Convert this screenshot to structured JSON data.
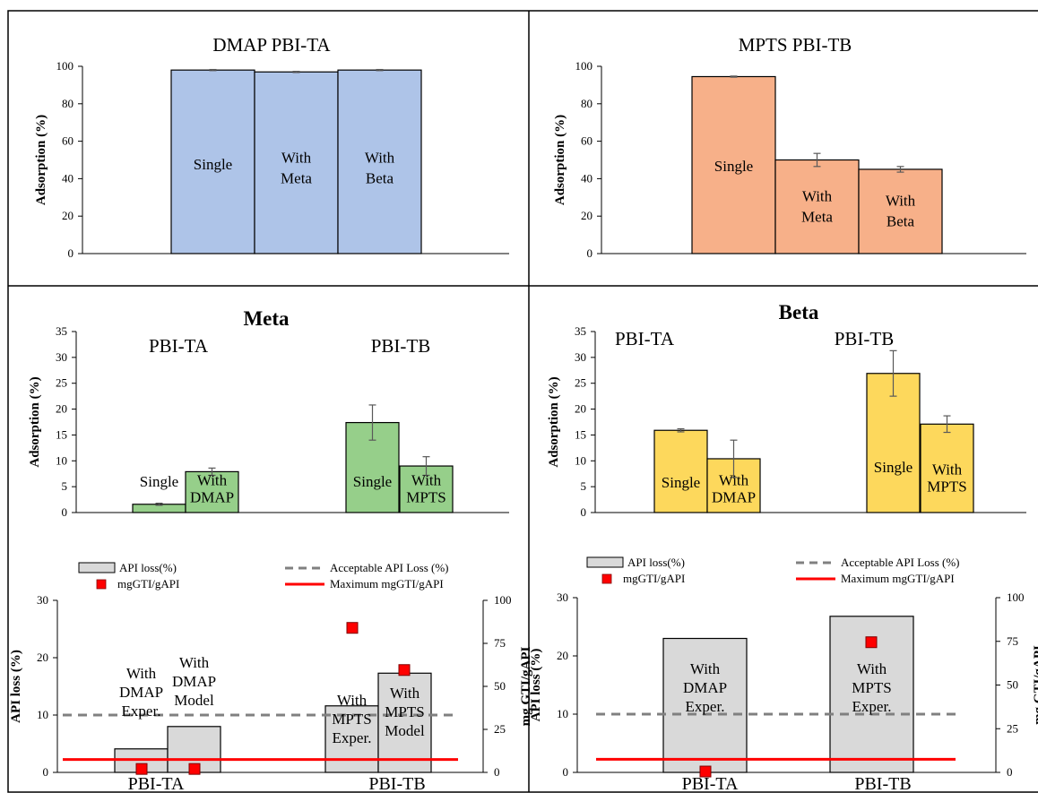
{
  "colors": {
    "dmap_bar": "#aec4e8",
    "mpts_bar": "#f7b089",
    "meta_bar": "#96cf8a",
    "beta_bar": "#fdd85c",
    "loss_bar": "#d9d9d9",
    "accept_line": "#808080",
    "max_line": "#ff0000",
    "marker": "#ff0000"
  },
  "chart_data": [
    {
      "type": "bar",
      "title": "DMAP PBI-TA",
      "ylabel": "Adsorption (%)",
      "ylim": [
        0,
        100
      ],
      "yticks": [
        "0",
        "20",
        "40",
        "60",
        "80",
        "100"
      ],
      "bars": [
        {
          "label": [
            "Single"
          ],
          "value": 98,
          "err": 0.3
        },
        {
          "label": [
            "With",
            "Meta"
          ],
          "value": 97,
          "err": 0.3
        },
        {
          "label": [
            "With",
            "Beta"
          ],
          "value": 98,
          "err": 0.3
        }
      ]
    },
    {
      "type": "bar",
      "title": "MPTS PBI-TB",
      "ylabel": "Adsorption (%)",
      "ylim": [
        0,
        100
      ],
      "yticks": [
        "0",
        "20",
        "40",
        "60",
        "80",
        "100"
      ],
      "bars": [
        {
          "label": [
            "Single"
          ],
          "value": 94.5,
          "err": 0.3
        },
        {
          "label": [
            "With",
            "Meta"
          ],
          "value": 50,
          "err": 3.5
        },
        {
          "label": [
            "With",
            "Beta"
          ],
          "value": 45,
          "err": 1.5
        }
      ]
    },
    {
      "type": "bar",
      "title": "Meta",
      "ylabel": "Adsorption (%)",
      "ylim": [
        0,
        35
      ],
      "yticks": [
        "0",
        "5",
        "10",
        "15",
        "20",
        "25",
        "30",
        "35"
      ],
      "groups": [
        "PBI-TA",
        "PBI-TB"
      ],
      "bars": [
        {
          "group": 0,
          "label": [
            "Single"
          ],
          "value": 1.6,
          "err": 0.2,
          "label_above": true
        },
        {
          "group": 0,
          "label": [
            "With",
            "DMAP"
          ],
          "value": 7.9,
          "err": 0.7
        },
        {
          "group": 1,
          "label": [
            "Single"
          ],
          "value": 17.4,
          "err": 3.4
        },
        {
          "group": 1,
          "label": [
            "With",
            "MPTS"
          ],
          "value": 9,
          "err": 1.8
        }
      ]
    },
    {
      "type": "bar",
      "title": "Beta",
      "ylabel": "Adsorption (%)",
      "ylim": [
        0,
        35
      ],
      "yticks": [
        "0",
        "5",
        "10",
        "15",
        "20",
        "25",
        "30",
        "35"
      ],
      "groups": [
        "PBI-TA",
        "PBI-TB"
      ],
      "bars": [
        {
          "group": 0,
          "label": [
            "Single"
          ],
          "value": 15.9,
          "err": 0.3
        },
        {
          "group": 0,
          "label": [
            "With",
            "DMAP"
          ],
          "value": 10.4,
          "err": 3.6
        },
        {
          "group": 1,
          "label": [
            "Single"
          ],
          "value": 26.9,
          "err": 4.4
        },
        {
          "group": 1,
          "label": [
            "With",
            "MPTS"
          ],
          "value": 17.1,
          "err": 1.6
        }
      ]
    },
    {
      "type": "bar",
      "ylabel": "API loss (%)",
      "y2label": "mg GTI/gAPI",
      "ylim": [
        0,
        30
      ],
      "y2lim": [
        0,
        100
      ],
      "yticks": [
        "0",
        "10",
        "20",
        "30"
      ],
      "y2ticks": [
        "0",
        "25",
        "50",
        "75",
        "100"
      ],
      "categories": [
        "PBI-TA",
        "PBI-TB"
      ],
      "legend": {
        "bar": "API loss(%)",
        "accept": "Acceptable API Loss (%)",
        "marker": "mgGTI/gAPI",
        "max": "Maximum mgGTI/gAPI"
      },
      "acceptable_loss": 10,
      "max_mg": 7.5,
      "bars": [
        {
          "label": [
            "With",
            "DMAP",
            "Exper."
          ],
          "value": 4.1,
          "marker": 2
        },
        {
          "label": [
            "With",
            "DMAP",
            "Model"
          ],
          "value": 8,
          "marker": 2
        },
        {
          "label": [
            "With",
            "MPTS",
            "Exper."
          ],
          "value": 11.6,
          "marker": 84
        },
        {
          "label": [
            "With",
            "MPTS",
            "Model"
          ],
          "value": 17.3,
          "marker": 59.5
        }
      ]
    },
    {
      "type": "bar",
      "ylabel": "API loss (%)",
      "y2label": "mg GTI/gAPI",
      "ylim": [
        0,
        30
      ],
      "y2lim": [
        0,
        100
      ],
      "yticks": [
        "0",
        "10",
        "20",
        "30"
      ],
      "y2ticks": [
        "0",
        "25",
        "50",
        "75",
        "100"
      ],
      "categories": [
        "PBI-TA",
        "PBI-TB"
      ],
      "legend": {
        "bar": "API loss(%)",
        "accept": "Acceptable API Loss (%)",
        "marker": "mgGTI/gAPI",
        "max": "Maximum mgGTI/gAPI"
      },
      "acceptable_loss": 10,
      "max_mg": 7.5,
      "bars": [
        {
          "label": [
            "With",
            "DMAP",
            "Exper."
          ],
          "value": 23,
          "marker": 0.5
        },
        {
          "label": [
            "With",
            "MPTS",
            "Exper."
          ],
          "value": 26.8,
          "marker": 74.5
        }
      ]
    }
  ]
}
